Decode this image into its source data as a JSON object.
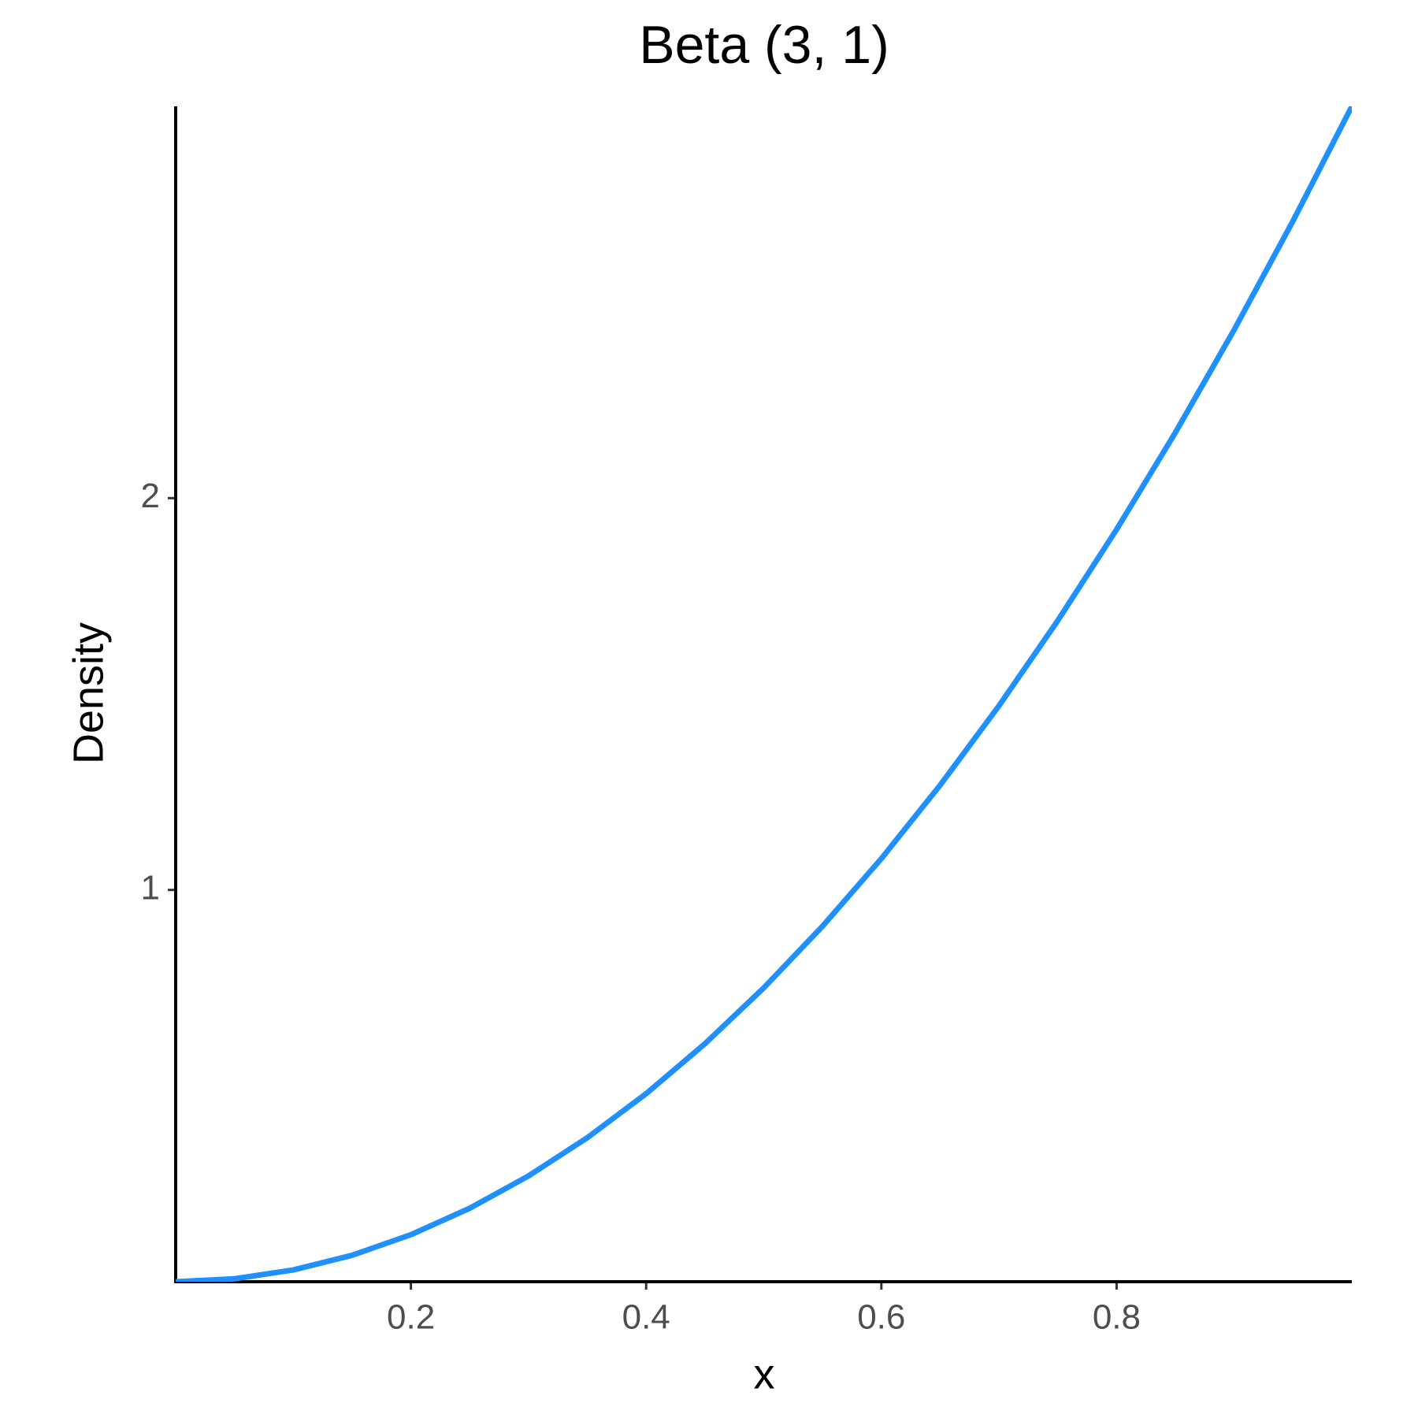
{
  "chart_data": {
    "type": "line",
    "title": "Beta (3, 1)",
    "x_label": "x",
    "y_label": "Density",
    "x": [
      0,
      0.05,
      0.1,
      0.15,
      0.2,
      0.25,
      0.3,
      0.35,
      0.4,
      0.45,
      0.5,
      0.55,
      0.6,
      0.65,
      0.7,
      0.75,
      0.8,
      0.85,
      0.9,
      0.95,
      1
    ],
    "series": [
      {
        "color": "#1e90ff",
        "values": [
          0,
          0.0075,
          0.03,
          0.0675,
          0.12,
          0.1875,
          0.27,
          0.3675,
          0.48,
          0.6075,
          0.75,
          0.9075,
          1.08,
          1.2675,
          1.47,
          1.6875,
          1.92,
          2.1675,
          2.43,
          2.7075,
          3
        ]
      }
    ],
    "xlim": [
      0,
      1
    ],
    "ylim": [
      0,
      3
    ],
    "xticks": [
      0.2,
      0.4,
      0.6,
      0.8
    ],
    "yticks": [
      1,
      2
    ],
    "grid": false
  }
}
